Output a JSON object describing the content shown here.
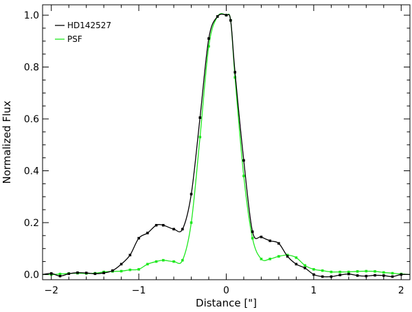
{
  "chart_data": {
    "type": "line",
    "title": "",
    "xlabel": "Distance [\"]",
    "ylabel": "Normalized Flux",
    "xlim": [
      -2.1,
      2.1
    ],
    "ylim": [
      -0.02,
      1.04
    ],
    "xticks": [
      -2,
      -1,
      0,
      1,
      2
    ],
    "xtick_labels": [
      "−2",
      "−1",
      "0",
      "1",
      "2"
    ],
    "yticks": [
      0.0,
      0.2,
      0.4,
      0.6,
      0.8,
      1.0
    ],
    "ytick_labels": [
      "0.0",
      "0.2",
      "0.4",
      "0.6",
      "0.8",
      "1.0"
    ],
    "grid": false,
    "legend_position": "top-left",
    "series": [
      {
        "name": "HD142527",
        "color": "#000000",
        "x": [
          -2.1,
          -2.0,
          -1.9,
          -1.8,
          -1.7,
          -1.6,
          -1.5,
          -1.4,
          -1.3,
          -1.2,
          -1.1,
          -1.0,
          -0.9,
          -0.8,
          -0.72,
          -0.6,
          -0.5,
          -0.4,
          -0.3,
          -0.2,
          -0.1,
          0.0,
          0.05,
          0.1,
          0.2,
          0.3,
          0.4,
          0.5,
          0.6,
          0.7,
          0.8,
          0.9,
          1.0,
          1.1,
          1.2,
          1.3,
          1.4,
          1.5,
          1.6,
          1.7,
          1.8,
          1.9,
          2.0,
          2.1
        ],
        "y": [
          0.0,
          0.004,
          -0.006,
          0.003,
          0.007,
          0.006,
          0.003,
          0.006,
          0.015,
          0.04,
          0.075,
          0.14,
          0.16,
          0.19,
          0.19,
          0.175,
          0.175,
          0.31,
          0.605,
          0.91,
          0.995,
          1.0,
          0.98,
          0.78,
          0.44,
          0.165,
          0.145,
          0.13,
          0.12,
          0.07,
          0.04,
          0.025,
          0.0,
          -0.008,
          -0.008,
          -0.002,
          0.002,
          -0.004,
          -0.006,
          -0.003,
          -0.004,
          -0.008,
          0.0,
          0.0
        ],
        "markers": [
          -2.0,
          -1.9,
          -1.8,
          -1.7,
          -1.6,
          -1.5,
          -1.4,
          -1.3,
          -1.2,
          -1.1,
          -1.0,
          -0.9,
          -0.8,
          -0.72,
          -0.6,
          -0.5,
          -0.4,
          -0.3,
          -0.2,
          -0.1,
          0.0,
          0.05,
          0.1,
          0.2,
          0.3,
          0.4,
          0.5,
          0.6,
          0.7,
          0.8,
          0.9,
          1.0,
          1.1,
          1.2,
          1.3,
          1.4,
          1.5,
          1.6,
          1.7,
          1.8,
          1.9,
          2.0
        ]
      },
      {
        "name": "PSF",
        "color": "#1ee81e",
        "x": [
          -2.1,
          -2.0,
          -1.9,
          -1.8,
          -1.7,
          -1.6,
          -1.5,
          -1.4,
          -1.3,
          -1.2,
          -1.1,
          -1.0,
          -0.9,
          -0.8,
          -0.72,
          -0.6,
          -0.5,
          -0.4,
          -0.3,
          -0.2,
          -0.1,
          0.0,
          0.05,
          0.1,
          0.2,
          0.3,
          0.4,
          0.5,
          0.6,
          0.7,
          0.8,
          0.9,
          1.0,
          1.1,
          1.2,
          1.3,
          1.4,
          1.5,
          1.6,
          1.7,
          1.8,
          1.9,
          2.0,
          2.1
        ],
        "y": [
          0.0,
          0.0,
          0.002,
          0.004,
          0.005,
          0.004,
          0.005,
          0.01,
          0.012,
          0.013,
          0.018,
          0.02,
          0.04,
          0.05,
          0.055,
          0.05,
          0.055,
          0.2,
          0.53,
          0.88,
          0.995,
          1.0,
          0.98,
          0.76,
          0.38,
          0.14,
          0.06,
          0.06,
          0.07,
          0.075,
          0.065,
          0.035,
          0.02,
          0.015,
          0.01,
          0.01,
          0.01,
          0.012,
          0.013,
          0.012,
          0.008,
          0.005,
          0.002,
          0.0
        ],
        "markers": [
          -2.0,
          -1.9,
          -1.8,
          -1.7,
          -1.6,
          -1.5,
          -1.4,
          -1.3,
          -1.2,
          -1.1,
          -1.0,
          -0.9,
          -0.8,
          -0.72,
          -0.6,
          -0.5,
          -0.4,
          -0.3,
          -0.2,
          -0.1,
          0.0,
          0.05,
          0.1,
          0.2,
          0.3,
          0.4,
          0.5,
          0.6,
          0.7,
          0.8,
          0.9,
          1.0,
          1.1,
          1.2,
          1.3,
          1.4,
          1.5,
          1.6,
          1.7,
          1.8,
          1.9,
          2.0
        ]
      }
    ]
  }
}
